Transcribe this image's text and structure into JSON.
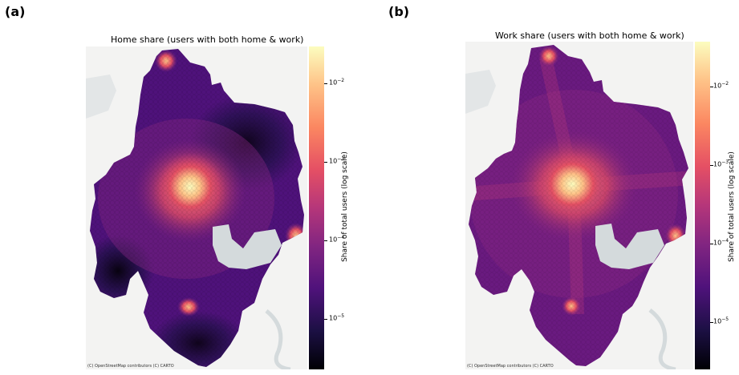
{
  "panels": [
    {
      "tag": "(a)",
      "title": "Home share (users with both home & work)",
      "credit": "(C) OpenStreetMap contributors (C) CARTO",
      "colorbar_label": "Share of total users (log scale)",
      "ticks": [
        {
          "base": "10",
          "exp": "−2"
        },
        {
          "base": "10",
          "exp": "−3"
        },
        {
          "base": "10",
          "exp": "−4"
        },
        {
          "base": "10",
          "exp": "−5"
        }
      ]
    },
    {
      "tag": "(b)",
      "title": "Work share (users with both home & work)",
      "credit": "(C) OpenStreetMap contributors (C) CARTO",
      "colorbar_label": "Share of total users (log scale)",
      "ticks": [
        {
          "base": "10",
          "exp": "−2"
        },
        {
          "base": "10",
          "exp": "−3"
        },
        {
          "base": "10",
          "exp": "−4"
        },
        {
          "base": "10",
          "exp": "−5"
        }
      ]
    }
  ],
  "colorscale": {
    "name": "magma",
    "scale": "log",
    "range": [
      2e-06,
      0.03
    ],
    "stops": [
      "#000004",
      "#1c1044",
      "#4f127b",
      "#812581",
      "#b5367a",
      "#e55064",
      "#fb8761",
      "#fec287",
      "#fcfdbf"
    ],
    "basemap_color": "#f3f3f2",
    "water_color": "#d4dadc"
  }
}
